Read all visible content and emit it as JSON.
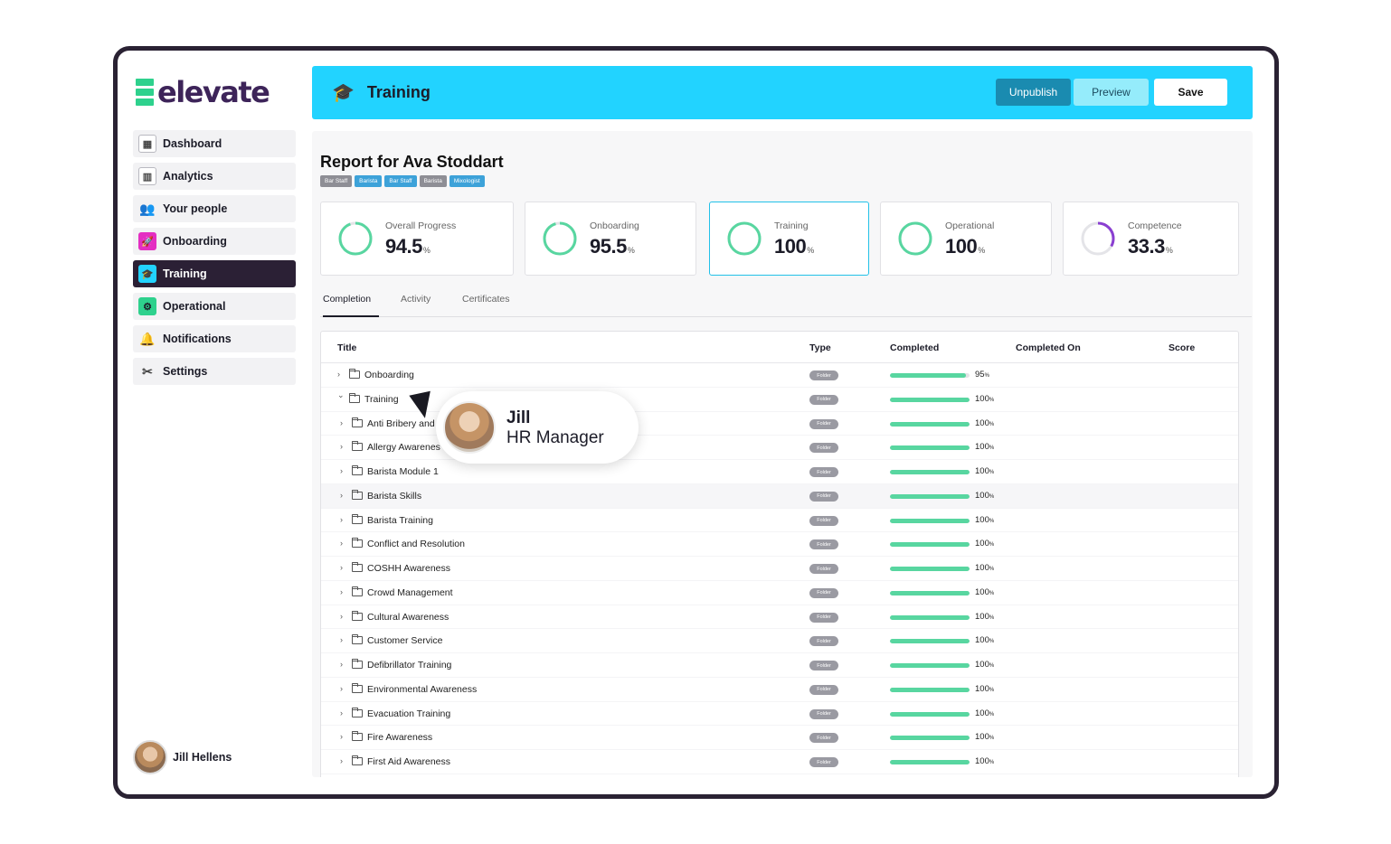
{
  "app": {
    "logo_text": "elevate"
  },
  "sidebar": {
    "items": [
      {
        "label": "Dashboard",
        "icon": "dashboard-icon"
      },
      {
        "label": "Analytics",
        "icon": "analytics-icon"
      },
      {
        "label": "Your people",
        "icon": "people-icon"
      },
      {
        "label": "Onboarding",
        "icon": "rocket-icon"
      },
      {
        "label": "Training",
        "icon": "graduation-cap-icon",
        "active": true
      },
      {
        "label": "Operational",
        "icon": "operational-icon"
      },
      {
        "label": "Notifications",
        "icon": "bell-icon"
      },
      {
        "label": "Settings",
        "icon": "tools-icon"
      }
    ],
    "user_name": "Jill Hellens"
  },
  "header": {
    "title": "Training",
    "unpublish_label": "Unpublish",
    "preview_label": "Preview",
    "save_label": "Save"
  },
  "report": {
    "title": "Report for Ava Stoddart",
    "tags": [
      "Bar Staff",
      "Barista",
      "Bar Staff",
      "Barista",
      "Mixologist"
    ]
  },
  "stats": [
    {
      "label": "Overall Progress",
      "value": "94.5",
      "unit": "%",
      "progress": 0.945
    },
    {
      "label": "Onboarding",
      "value": "95.5",
      "unit": "%",
      "progress": 0.955
    },
    {
      "label": "Training",
      "value": "100",
      "unit": "%",
      "progress": 1.0
    },
    {
      "label": "Operational",
      "value": "100",
      "unit": "%",
      "progress": 1.0
    },
    {
      "label": "Competence",
      "value": "33.3",
      "unit": "%",
      "progress": 0.333
    }
  ],
  "tabs": [
    "Completion",
    "Activity",
    "Certificates"
  ],
  "table": {
    "headers": {
      "title": "Title",
      "type": "Type",
      "completed": "Completed",
      "completed_on": "Completed On",
      "score": "Score"
    },
    "rows": [
      {
        "title": "Onboarding",
        "type": "Folder",
        "pct": "95",
        "progress": 0.95,
        "level": 0,
        "expanded": false
      },
      {
        "title": "Training",
        "type": "Folder",
        "pct": "100",
        "progress": 1.0,
        "level": 0,
        "expanded": true
      },
      {
        "title": "Anti Bribery and",
        "type": "Folder",
        "pct": "100",
        "progress": 1.0,
        "level": 1
      },
      {
        "title": "Allergy Awarenes",
        "type": "Folder",
        "pct": "100",
        "progress": 1.0,
        "level": 1
      },
      {
        "title": "Barista Module 1",
        "type": "Folder",
        "pct": "100",
        "progress": 1.0,
        "level": 1
      },
      {
        "title": "Barista Skills",
        "type": "Folder",
        "pct": "100",
        "progress": 1.0,
        "level": 1,
        "highlight": true
      },
      {
        "title": "Barista Training",
        "type": "Folder",
        "pct": "100",
        "progress": 1.0,
        "level": 1
      },
      {
        "title": "Conflict and Resolution",
        "type": "Folder",
        "pct": "100",
        "progress": 1.0,
        "level": 1
      },
      {
        "title": "COSHH Awareness",
        "type": "Folder",
        "pct": "100",
        "progress": 1.0,
        "level": 1
      },
      {
        "title": "Crowd Management",
        "type": "Folder",
        "pct": "100",
        "progress": 1.0,
        "level": 1
      },
      {
        "title": "Cultural Awareness",
        "type": "Folder",
        "pct": "100",
        "progress": 1.0,
        "level": 1
      },
      {
        "title": "Customer Service",
        "type": "Folder",
        "pct": "100",
        "progress": 1.0,
        "level": 1
      },
      {
        "title": "Defibrillator Training",
        "type": "Folder",
        "pct": "100",
        "progress": 1.0,
        "level": 1
      },
      {
        "title": "Environmental Awareness",
        "type": "Folder",
        "pct": "100",
        "progress": 1.0,
        "level": 1
      },
      {
        "title": "Evacuation Training",
        "type": "Folder",
        "pct": "100",
        "progress": 1.0,
        "level": 1
      },
      {
        "title": "Fire Awareness",
        "type": "Folder",
        "pct": "100",
        "progress": 1.0,
        "level": 1
      },
      {
        "title": "First Aid Awareness",
        "type": "Folder",
        "pct": "100",
        "progress": 1.0,
        "level": 1
      }
    ],
    "pct_unit": "%"
  },
  "tooltip": {
    "name": "Jill",
    "role": "HR Manager"
  },
  "colors": {
    "accent": "#22d3ff",
    "dark": "#2b2035",
    "green": "#2ed18d",
    "ring": "#58d6a0",
    "competence_ring": "#8a3fd1"
  }
}
